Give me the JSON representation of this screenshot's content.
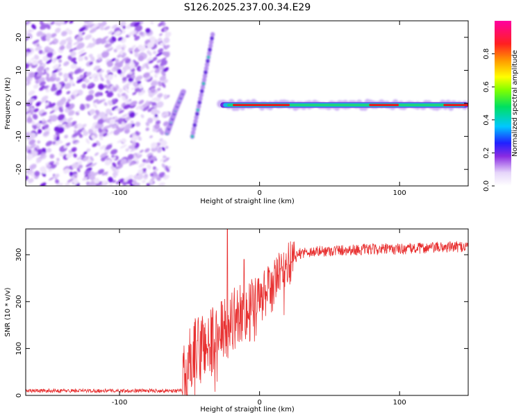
{
  "title": "S126.2025.237.00.34.E29",
  "chart_data": [
    {
      "type": "heatmap",
      "title": "S126.2025.237.00.34.E29",
      "xlabel": "Height of straight line (km)",
      "ylabel": "Frequency (Hz)",
      "xlim": [
        -167,
        149
      ],
      "ylim": [
        -25,
        25
      ],
      "x_ticks": [
        -100,
        0,
        100
      ],
      "y_ticks": [
        -20,
        -10,
        0,
        10,
        20
      ],
      "colorbar": {
        "label": "Normalized spectral amplitude",
        "range": [
          0,
          1
        ],
        "ticks": [
          0.0,
          0.2,
          0.4,
          0.6,
          0.8
        ]
      },
      "features": [
        {
          "name": "noise-region",
          "x_range": [
            -167,
            -67
          ],
          "description_values": "scattered low amplitude"
        },
        {
          "name": "streak-1",
          "points": [
            [
              -66,
              -9
            ],
            [
              -60,
              -2
            ],
            [
              -54,
              4
            ]
          ],
          "amplitude": 0.3
        },
        {
          "name": "streak-2",
          "points": [
            [
              -48,
              -10
            ],
            [
              -40,
              6
            ],
            [
              -33,
              22
            ]
          ],
          "amplitude": 0.25
        },
        {
          "name": "carrier-line",
          "x_range": [
            -28,
            149
          ],
          "frequency": -0.5,
          "amplitude": 0.95
        }
      ]
    },
    {
      "type": "line",
      "xlabel": "Height of straight line (km)",
      "ylabel": "SNR (10 * v/v)",
      "xlim": [
        -167,
        149
      ],
      "ylim": [
        0,
        355
      ],
      "x_ticks": [
        -100,
        0,
        100
      ],
      "y_ticks": [
        0,
        100,
        200,
        300
      ],
      "series": [
        {
          "name": "SNR",
          "color": "#e83030",
          "profile": [
            [
              -167,
              10
            ],
            [
              -55,
              10
            ],
            [
              -50,
              60
            ],
            [
              -40,
              110
            ],
            [
              -30,
              120
            ],
            [
              -20,
              160
            ],
            [
              -10,
              180
            ],
            [
              0,
              200
            ],
            [
              10,
              240
            ],
            [
              20,
              280
            ],
            [
              30,
              305
            ],
            [
              60,
              310
            ],
            [
              100,
              312
            ],
            [
              149,
              318
            ]
          ],
          "spikes": [
            [
              -23,
              355
            ],
            [
              -11,
              290
            ]
          ]
        }
      ]
    }
  ]
}
